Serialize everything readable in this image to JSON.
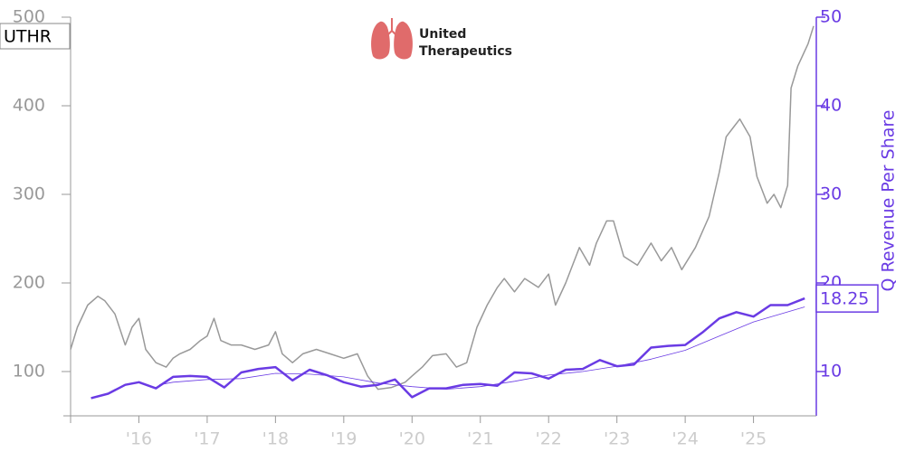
{
  "chart_data": {
    "type": "line",
    "ticker": "UTHR",
    "logo_text": [
      "United",
      "Therapeutics"
    ],
    "y2_label": "Q Revenue Per Share",
    "xlim": [
      2015.0,
      2025.92
    ],
    "xticks": [
      {
        "value": 2016,
        "label": "'16"
      },
      {
        "value": 2017,
        "label": "'17"
      },
      {
        "value": 2018,
        "label": "'18"
      },
      {
        "value": 2019,
        "label": "'19"
      },
      {
        "value": 2020,
        "label": "'20"
      },
      {
        "value": 2021,
        "label": "'21"
      },
      {
        "value": 2022,
        "label": "'22"
      },
      {
        "value": 2023,
        "label": "'23"
      },
      {
        "value": 2024,
        "label": "'24"
      },
      {
        "value": 2025,
        "label": "'25"
      }
    ],
    "ylim": [
      50,
      500
    ],
    "yticks": [
      100,
      200,
      300,
      400,
      500
    ],
    "y2lim": [
      5,
      50
    ],
    "y2ticks": [
      10,
      20,
      30,
      40,
      50
    ],
    "series": [
      {
        "color": "#999999",
        "axis": "y",
        "width": 1.5,
        "x": [
          2015.0,
          2015.1,
          2015.25,
          2015.4,
          2015.5,
          2015.65,
          2015.8,
          2015.9,
          2016.0,
          2016.1,
          2016.25,
          2016.4,
          2016.5,
          2016.6,
          2016.75,
          2016.9,
          2017.0,
          2017.1,
          2017.2,
          2017.35,
          2017.5,
          2017.7,
          2017.9,
          2018.0,
          2018.1,
          2018.25,
          2018.4,
          2018.6,
          2018.8,
          2019.0,
          2019.2,
          2019.35,
          2019.5,
          2019.7,
          2019.9,
          2020.0,
          2020.15,
          2020.3,
          2020.5,
          2020.65,
          2020.8,
          2020.95,
          2021.1,
          2021.25,
          2021.35,
          2021.5,
          2021.65,
          2021.85,
          2022.0,
          2022.1,
          2022.25,
          2022.45,
          2022.6,
          2022.7,
          2022.85,
          2022.95,
          2023.1,
          2023.3,
          2023.5,
          2023.65,
          2023.8,
          2023.95,
          2024.15,
          2024.35,
          2024.5,
          2024.6,
          2024.7,
          2024.8,
          2024.95,
          2025.05,
          2025.2,
          2025.3,
          2025.4,
          2025.5,
          2025.55,
          2025.65,
          2025.8,
          2025.88
        ],
        "values": [
          125,
          150,
          175,
          185,
          180,
          165,
          130,
          150,
          160,
          125,
          110,
          105,
          115,
          120,
          125,
          135,
          140,
          160,
          135,
          130,
          130,
          125,
          130,
          145,
          120,
          110,
          120,
          125,
          120,
          115,
          120,
          95,
          80,
          82,
          88,
          95,
          105,
          118,
          120,
          105,
          110,
          150,
          175,
          195,
          205,
          190,
          205,
          195,
          210,
          175,
          200,
          240,
          220,
          245,
          270,
          270,
          230,
          220,
          245,
          225,
          240,
          215,
          240,
          275,
          325,
          365,
          375,
          385,
          365,
          320,
          290,
          300,
          285,
          310,
          420,
          445,
          470,
          490
        ]
      },
      {
        "color": "#6a3be4",
        "axis": "y2",
        "width": 2.5,
        "x": [
          2015.3,
          2015.55,
          2015.8,
          2016.0,
          2016.25,
          2016.5,
          2016.75,
          2017.0,
          2017.25,
          2017.5,
          2017.75,
          2018.0,
          2018.25,
          2018.5,
          2018.75,
          2019.0,
          2019.25,
          2019.5,
          2019.75,
          2020.0,
          2020.25,
          2020.5,
          2020.75,
          2021.0,
          2021.25,
          2021.5,
          2021.75,
          2022.0,
          2022.25,
          2022.5,
          2022.75,
          2023.0,
          2023.25,
          2023.5,
          2023.75,
          2024.0,
          2024.25,
          2024.5,
          2024.75,
          2025.0,
          2025.25,
          2025.5,
          2025.75
        ],
        "values": [
          7,
          7.5,
          8.5,
          8.8,
          8.1,
          9.4,
          9.5,
          9.4,
          8.2,
          9.9,
          10.3,
          10.5,
          9.0,
          10.2,
          9.6,
          8.8,
          8.3,
          8.5,
          9.1,
          7.1,
          8.1,
          8.1,
          8.5,
          8.6,
          8.4,
          9.9,
          9.8,
          9.2,
          10.2,
          10.3,
          11.3,
          10.6,
          10.8,
          12.7,
          12.9,
          13.0,
          14.4,
          16.0,
          16.7,
          16.2,
          17.5,
          17.5,
          18.25
        ]
      },
      {
        "color": "#6a3be4",
        "axis": "y2",
        "width": 0.8,
        "x": [
          2016.3,
          2016.5,
          2017.0,
          2017.5,
          2018.0,
          2018.5,
          2019.0,
          2019.5,
          2020.0,
          2020.5,
          2021.0,
          2021.5,
          2022.0,
          2022.5,
          2023.0,
          2023.5,
          2024.0,
          2024.5,
          2025.0,
          2025.75
        ],
        "values": [
          8.5,
          8.8,
          9.1,
          9.2,
          9.8,
          9.7,
          9.4,
          8.7,
          8.3,
          8.0,
          8.3,
          8.9,
          9.6,
          10.0,
          10.6,
          11.4,
          12.4,
          14.0,
          15.6,
          17.3
        ]
      }
    ]
  }
}
